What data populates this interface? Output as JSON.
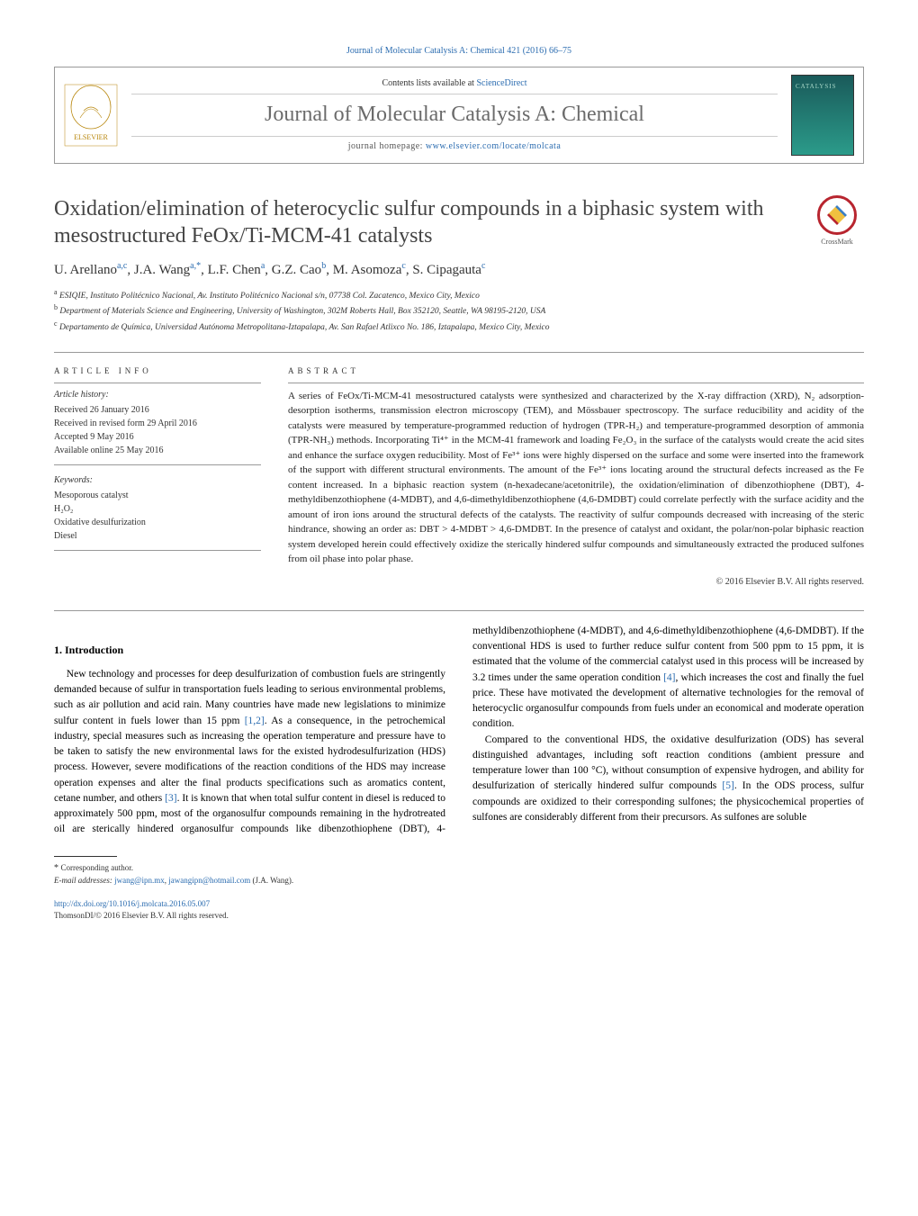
{
  "header": {
    "top_citation": "Journal of Molecular Catalysis A: Chemical 421 (2016) 66–75",
    "contents_prefix": "Contents lists available at ",
    "contents_link": "ScienceDirect",
    "journal_name": "Journal of Molecular Catalysis A: Chemical",
    "homepage_prefix": "journal homepage: ",
    "homepage_url": "www.elsevier.com/locate/molcata",
    "crossmark_label": "CrossMark"
  },
  "article": {
    "title": "Oxidation/elimination of heterocyclic sulfur compounds in a biphasic system with mesostructured FeOx/Ti-MCM-41 catalysts",
    "authors_html": "U. Arellano<sup>a,c</sup>, J.A. Wang<sup>a,*</sup>, L.F. Chen<sup>a</sup>, G.Z. Cao<sup>b</sup>, M. Asomoza<sup>c</sup>, S. Cipagauta<sup>c</sup>",
    "affiliations": [
      {
        "sup": "a",
        "text": "ESIQIE, Instituto Politécnico Nacional, Av. Instituto Politécnico Nacional s/n, 07738 Col. Zacatenco, Mexico City, Mexico"
      },
      {
        "sup": "b",
        "text": "Department of Materials Science and Engineering, University of Washington, 302M Roberts Hall, Box 352120, Seattle, WA 98195-2120, USA"
      },
      {
        "sup": "c",
        "text": "Departamento de Química, Universidad Autónoma Metropolitana-Iztapalapa, Av. San Rafael Atlixco No. 186, Iztapalapa, Mexico City, Mexico"
      }
    ]
  },
  "info": {
    "article_info_label": "ARTICLE INFO",
    "abstract_label": "ABSTRACT",
    "history_label": "Article history:",
    "history": [
      "Received 26 January 2016",
      "Received in revised form 29 April 2016",
      "Accepted 9 May 2016",
      "Available online 25 May 2016"
    ],
    "keywords_label": "Keywords:",
    "keywords": [
      "Mesoporous catalyst",
      "H₂O₂",
      "Oxidative desulfurization",
      "Diesel"
    ]
  },
  "abstract": {
    "text": "A series of FeOx/Ti-MCM-41 mesostructured catalysts were synthesized and characterized by the X-ray diffraction (XRD), N₂ adsorption-desorption isotherms, transmission electron microscopy (TEM), and Mössbauer spectroscopy. The surface reducibility and acidity of the catalysts were measured by temperature-programmed reduction of hydrogen (TPR-H₂) and temperature-programmed desorption of ammonia (TPR-NH₃) methods. Incorporating Ti⁴⁺ in the MCM-41 framework and loading Fe₂O₃ in the surface of the catalysts would create the acid sites and enhance the surface oxygen reducibility. Most of Fe³⁺ ions were highly dispersed on the surface and some were inserted into the framework of the support with different structural environments. The amount of the Fe³⁺ ions locating around the structural defects increased as the Fe content increased. In a biphasic reaction system (n-hexadecane/acetonitrile), the oxidation/elimination of dibenzothiophene (DBT), 4-methyldibenzothiophene (4-MDBT), and 4,6-dimethyldibenzothiophene (4,6-DMDBT) could correlate perfectly with the surface acidity and the amount of iron ions around the structural defects of the catalysts. The reactivity of sulfur compounds decreased with increasing of the steric hindrance, showing an order as: DBT > 4-MDBT > 4,6-DMDBT. In the presence of catalyst and oxidant, the polar/non-polar biphasic reaction system developed herein could effectively oxidize the sterically hindered sulfur compounds and simultaneously extracted the produced sulfones from oil phase into polar phase.",
    "copyright": "© 2016 Elsevier B.V. All rights reserved."
  },
  "body": {
    "intro_heading": "1. Introduction",
    "p1_a": "New technology and processes for deep desulfurization of combustion fuels are stringently demanded because of sulfur in transportation fuels leading to serious environmental problems, such as air pollution and acid rain. Many countries have made new legislations to minimize sulfur content in fuels lower than 15 ppm ",
    "ref1": "[1,2]",
    "p1_b": ". As a consequence, in the petrochemical industry, special measures such as increasing the operation temperature and pressure have to be taken to satisfy the new environmental laws for the existed hydrodesulfurization (HDS) process. However, severe modifications of the reaction conditions of the HDS may increase operation expenses and alter the final products specifications such as aromatics content, cetane number, and others ",
    "ref2": "[3]",
    "p1_c": ". It is known that when total sulfur content in diesel is reduced to approximately 500 ppm, most of the organosulfur compounds remaining ",
    "p2_a": "in the hydrotreated oil are sterically hindered organosulfur compounds like dibenzothiophene (DBT), 4-methyldibenzothiophene (4-MDBT), and 4,6-dimethyldibenzothiophene (4,6-DMDBT). If the conventional HDS is used to further reduce sulfur content from 500 ppm to 15 ppm, it is estimated that the volume of the commercial catalyst used in this process will be increased by 3.2 times under the same operation condition ",
    "ref3": "[4]",
    "p2_b": ", which increases the cost and finally the fuel price. These have motivated the development of alternative technologies for the removal of heterocyclic organosulfur compounds from fuels under an economical and moderate operation condition.",
    "p3_a": "Compared to the conventional HDS, the oxidative desulfurization (ODS) has several distinguished advantages, including soft reaction conditions (ambient pressure and temperature lower than 100 °C), without consumption of expensive hydrogen, and ability for desulfurization of sterically hindered sulfur compounds ",
    "ref4": "[5]",
    "p3_b": ". In the ODS process, sulfur compounds are oxidized to their corresponding sulfones; the physicochemical properties of sulfones are considerably different from their precursors. As sulfones are soluble"
  },
  "footnote": {
    "corr_label": "Corresponding author.",
    "email_label": "E-mail addresses: ",
    "email1": "jwang@ipn.mx",
    "email_sep": ", ",
    "email2": "jawangipn@hotmail.com",
    "email_paren": " (J.A. Wang)."
  },
  "doi": {
    "url": "http://dx.doi.org/10.1016/j.molcata.2016.05.007",
    "line2": "ThomsonDI/© 2016 Elsevier B.V. All rights reserved."
  },
  "colors": {
    "link": "#2b6cb0",
    "text": "#000000",
    "grey_title": "#6b6b6b",
    "border": "#999999",
    "crossmark_red": "#b8252f"
  }
}
